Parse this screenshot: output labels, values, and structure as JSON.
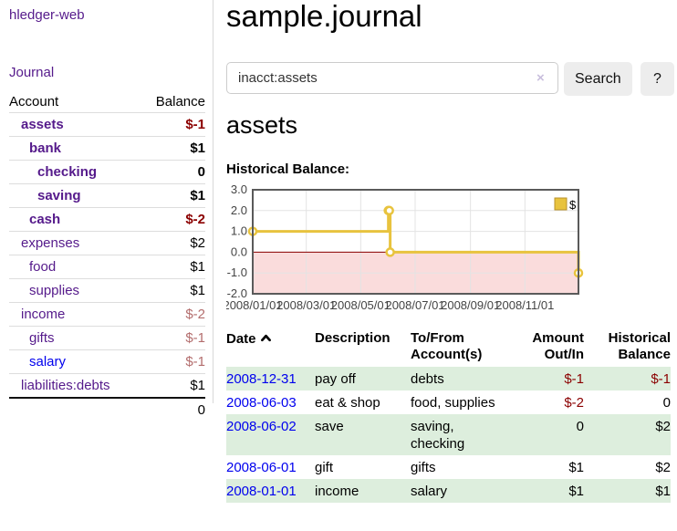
{
  "app": {
    "title": "hledger-web"
  },
  "sidebar": {
    "journal_link": "Journal",
    "accounts_header": {
      "account": "Account",
      "balance": "Balance"
    },
    "accounts": [
      {
        "name": "assets",
        "balance": "$-1",
        "indent": 1,
        "bold": true,
        "neg": "strong"
      },
      {
        "name": "bank",
        "balance": "$1",
        "indent": 2,
        "bold": true,
        "neg": null
      },
      {
        "name": "checking",
        "balance": "0",
        "indent": 3,
        "bold": true,
        "neg": null
      },
      {
        "name": "saving",
        "balance": "$1",
        "indent": 3,
        "bold": true,
        "neg": null
      },
      {
        "name": "cash",
        "balance": "$-2",
        "indent": 2,
        "bold": true,
        "neg": "strong"
      },
      {
        "name": "expenses",
        "balance": "$2",
        "indent": 1,
        "bold": false,
        "neg": null
      },
      {
        "name": "food",
        "balance": "$1",
        "indent": 2,
        "bold": false,
        "neg": null
      },
      {
        "name": "supplies",
        "balance": "$1",
        "indent": 2,
        "bold": false,
        "neg": null
      },
      {
        "name": "income",
        "balance": "$-2",
        "indent": 1,
        "bold": false,
        "neg": "muted"
      },
      {
        "name": "gifts",
        "balance": "$-1",
        "indent": 2,
        "bold": false,
        "neg": "muted"
      },
      {
        "name": "salary",
        "balance": "$-1",
        "indent": 2,
        "bold": false,
        "neg": "muted",
        "blue": true
      },
      {
        "name": "liabilities:debts",
        "balance": "$1",
        "indent": 1,
        "bold": false,
        "neg": null
      }
    ],
    "total": "0"
  },
  "header": {
    "title": "sample.journal"
  },
  "search": {
    "value": "inacct:assets",
    "clear_icon": "×",
    "button_label": "Search",
    "help_label": "?"
  },
  "account_page": {
    "title": "assets",
    "chart_label": "Historical Balance:"
  },
  "chart_data": {
    "type": "line",
    "step": true,
    "title": "Historical Balance:",
    "series": [
      {
        "name": "$",
        "points": [
          [
            "2008-01-01",
            1
          ],
          [
            "2008-06-01",
            2
          ],
          [
            "2008-06-02",
            2
          ],
          [
            "2008-06-03",
            0
          ],
          [
            "2008-12-31",
            -1
          ]
        ]
      }
    ],
    "x_ticks": [
      "2008/01/01",
      "2008/03/01",
      "2008/05/01",
      "2008/07/01",
      "2008/09/01",
      "2008/11/01"
    ],
    "y_ticks": [
      3.0,
      2.0,
      1.0,
      0.0,
      -1.0,
      -2.0
    ],
    "xlim": [
      "2008-01-01",
      "2008-12-31"
    ],
    "ylim": [
      -2,
      3
    ],
    "grid": true,
    "legend": {
      "label": "$",
      "position": "top-right"
    },
    "line_color": "#e8c33e",
    "legend_border_color": "#b8912a",
    "zero_line_color": "#8b0000",
    "negative_region_color": "#fadcdc",
    "grid_color": "#e3e3e3",
    "frame_color": "#5a5a5a",
    "tick_label_color": "#444444"
  },
  "register": {
    "columns": {
      "date": "Date",
      "description": "Description",
      "account": "To/From Account(s)",
      "amount": "Amount Out/In",
      "balance": "Historical Balance"
    },
    "rows": [
      {
        "date": "2008-12-31",
        "description": "pay off",
        "accounts": "debts",
        "amount": "$-1",
        "balance": "$-1",
        "amount_neg": true,
        "balance_neg": true
      },
      {
        "date": "2008-06-03",
        "description": "eat & shop",
        "accounts": "food, supplies",
        "amount": "$-2",
        "balance": "0",
        "amount_neg": true,
        "balance_neg": false
      },
      {
        "date": "2008-06-02",
        "description": "save",
        "accounts": "saving, checking",
        "amount": "0",
        "balance": "$2",
        "amount_neg": false,
        "balance_neg": false
      },
      {
        "date": "2008-06-01",
        "description": "gift",
        "accounts": "gifts",
        "amount": "$1",
        "balance": "$2",
        "amount_neg": false,
        "balance_neg": false
      },
      {
        "date": "2008-01-01",
        "description": "income",
        "accounts": "salary",
        "amount": "$1",
        "balance": "$1",
        "amount_neg": false,
        "balance_neg": false
      }
    ]
  },
  "colors": {
    "link_purple": "#551a8b",
    "link_blue": "#0000ee",
    "negative_strong": "#8b0000",
    "negative_muted": "#b36d6d",
    "row_stripe_green": "#ddeedd"
  }
}
